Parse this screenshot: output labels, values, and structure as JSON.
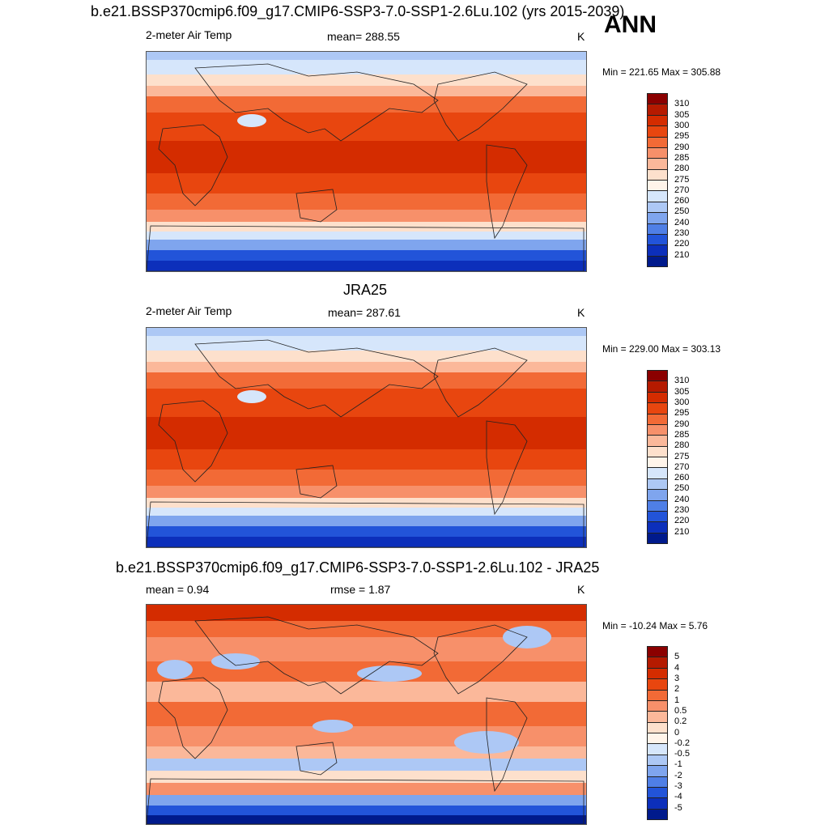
{
  "panels": [
    {
      "title": "b.e21.BSSP370cmip6.f09_g17.CMIP6-SSP3-7.0-SSP1-2.6Lu.102 (yrs 2015-2039)",
      "left_label": "2-meter Air Temp",
      "center_label": "mean= 288.55",
      "units": "K",
      "minmax": "Min = 221.65 Max = 305.88",
      "field": "model"
    },
    {
      "title": "JRA25",
      "left_label": "2-meter Air Temp",
      "center_label": "mean= 287.61",
      "units": "K",
      "minmax": "Min = 229.00 Max = 303.13",
      "field": "obs"
    },
    {
      "title": "b.e21.BSSP370cmip6.f09_g17.CMIP6-SSP3-7.0-SSP1-2.6Lu.102 - JRA25",
      "left_label": "mean =   0.94",
      "center_label": "rmse =   1.87",
      "units": "K",
      "minmax": "Min = -10.24 Max =   5.76",
      "field": "diff"
    }
  ],
  "season": "ANN",
  "colorbar_abs": {
    "labels": [
      "310",
      "305",
      "300",
      "295",
      "290",
      "285",
      "280",
      "275",
      "270",
      "260",
      "250",
      "240",
      "230",
      "220",
      "210"
    ],
    "colors": [
      "#8b0000",
      "#b51a00",
      "#d42c00",
      "#e8460f",
      "#f26a36",
      "#f7906a",
      "#fbb89a",
      "#fde0cc",
      "#fff4ea",
      "#d6e6fb",
      "#adc8f5",
      "#7fa5ee",
      "#4f7fe6",
      "#2254d9",
      "#0c2fbb",
      "#001a8c"
    ]
  },
  "colorbar_diff": {
    "labels": [
      "5",
      "4",
      "3",
      "2",
      "1",
      "0.5",
      "0.2",
      "0",
      "-0.2",
      "-0.5",
      "-1",
      "-2",
      "-3",
      "-4",
      "-5"
    ],
    "colors": [
      "#8b0000",
      "#b51a00",
      "#d42c00",
      "#e8460f",
      "#f26a36",
      "#f7906a",
      "#fbb89a",
      "#fde0cc",
      "#fff4ea",
      "#d6e6fb",
      "#adc8f5",
      "#7fa5ee",
      "#4f7fe6",
      "#2254d9",
      "#0c2fbb",
      "#001a8c"
    ]
  }
}
